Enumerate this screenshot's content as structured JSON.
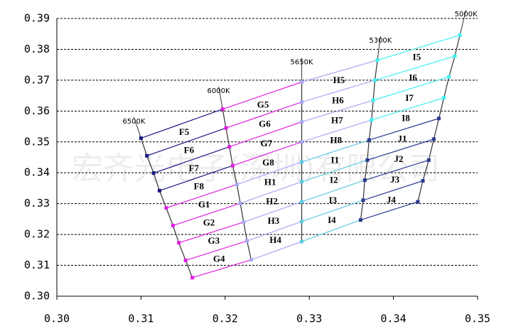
{
  "chart_data": {
    "type": "bin-map",
    "watermark": "宏齐光电子(深圳)有限公司",
    "xlim": [
      0.3,
      0.35
    ],
    "ylim": [
      0.3,
      0.39
    ],
    "xticks": [
      {
        "value": 0.3,
        "label": "0.30"
      },
      0.31,
      0.32,
      0.33,
      0.34,
      0.35
    ],
    "yticks": [
      {
        "value": 0.3,
        "label": "0.30"
      },
      0.31,
      0.32,
      0.33,
      0.34,
      0.35,
      0.36,
      0.37,
      0.38,
      0.39
    ],
    "grid": true,
    "line_color": "#333333",
    "columns": [
      {
        "name": "6500K",
        "x": [
          0.31,
          0.3107,
          0.3115,
          0.3122,
          0.313,
          0.3138,
          0.3145,
          0.3153,
          0.3161
        ],
        "y": [
          0.3512,
          0.3455,
          0.3399,
          0.3342,
          0.3286,
          0.3229,
          0.3173,
          0.3116,
          0.306
        ]
      },
      {
        "name": "6000K",
        "x": [
          0.3197,
          0.3201,
          0.3205,
          0.3209,
          0.3214,
          0.3218,
          0.3222,
          0.3226,
          0.3231
        ],
        "y": [
          0.3606,
          0.3545,
          0.3484,
          0.3423,
          0.3362,
          0.3301,
          0.324,
          0.3179,
          0.3118
        ]
      },
      {
        "name": "5650K",
        "x": [
          0.3291,
          0.3291,
          0.3291,
          0.3291,
          0.3291,
          0.3291,
          0.3291,
          0.3291,
          0.3291
        ],
        "y": [
          0.3694,
          0.3629,
          0.3565,
          0.35,
          0.3435,
          0.3371,
          0.3306,
          0.3242,
          0.3177
        ]
      },
      {
        "name": "5300K",
        "x": [
          0.3381,
          0.3378,
          0.3376,
          0.3374,
          0.3371,
          0.3369,
          0.3366,
          0.3364,
          0.3361
        ],
        "y": [
          0.3765,
          0.37,
          0.3635,
          0.3571,
          0.3506,
          0.3441,
          0.3376,
          0.3311,
          0.3247
        ]
      },
      {
        "name": "5000K",
        "x": [
          0.3479,
          0.3473,
          0.3466,
          0.346,
          0.3454,
          0.3448,
          0.3442,
          0.3435,
          0.3429
        ],
        "y": [
          0.3846,
          0.3778,
          0.3711,
          0.3643,
          0.3576,
          0.3509,
          0.3441,
          0.3374,
          0.3306
        ]
      }
    ],
    "bands": [
      {
        "labels": [
          "F5",
          "F6",
          "F7",
          "F8",
          "G1",
          "G2",
          "G3",
          "G4"
        ],
        "colors": [
          "#1a1a80",
          "#e020e0"
        ]
      },
      {
        "labels": [
          "G5",
          "G6",
          "G7",
          "G8",
          "H1",
          "H2",
          "H3",
          "H4"
        ],
        "colors": [
          "#e020e0",
          "#a8a8f0"
        ]
      },
      {
        "labels": [
          "H5",
          "H6",
          "H7",
          "H8",
          "I1",
          "I2",
          "I3",
          "I4"
        ],
        "colors": [
          "#a8a8f0",
          "#60c8e0"
        ]
      },
      {
        "labels": [
          "I5",
          "I6",
          "I7",
          "I8",
          "J1",
          "J2",
          "J3",
          "J4"
        ],
        "colors": [
          "#40f0f0",
          "#2a3a90"
        ]
      }
    ]
  }
}
